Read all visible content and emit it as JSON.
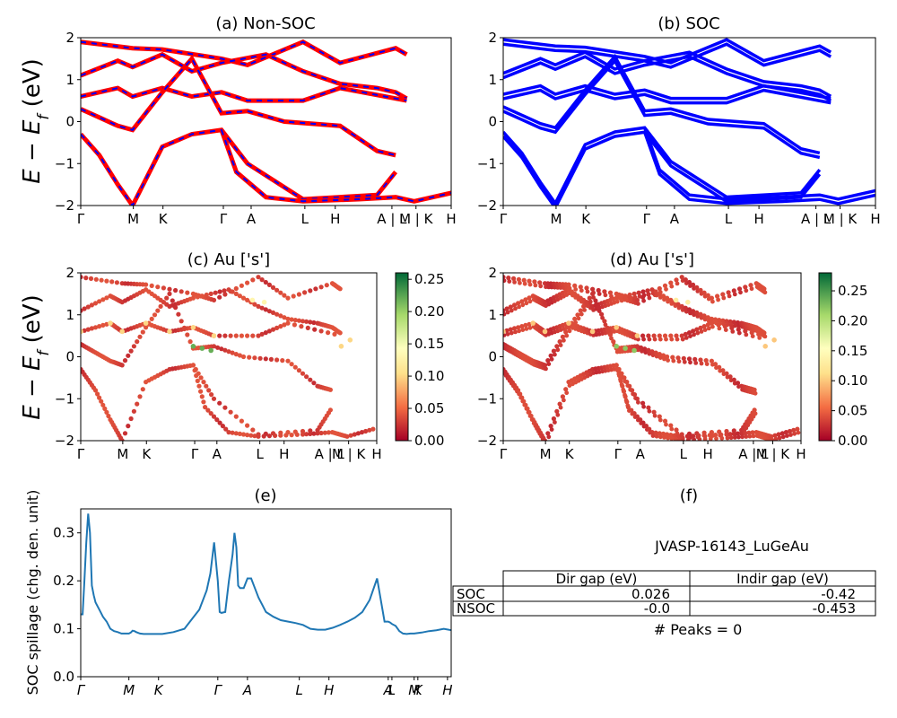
{
  "ylabel_main": "E − E",
  "ylabel_sub": "f",
  "ylabel_unit": " (eV)",
  "chart_data": [
    {
      "id": "a",
      "type": "line",
      "title": "(a) Non-SOC",
      "ylim": [
        -2,
        2
      ],
      "yticks": [
        "2",
        "1",
        "0",
        "−1",
        "−2"
      ],
      "xticks": [
        "Γ",
        "M",
        "K",
        "Γ",
        "A",
        "L",
        "H",
        "A | L",
        "M | K",
        "H"
      ],
      "colors": [
        "#ff0000",
        "#0000ff"
      ],
      "series": [
        {
          "x": [
            0,
            0.14,
            0.22,
            0.38,
            0.45,
            0.6,
            0.7,
            0.85,
            0.88
          ],
          "y": [
            1.9,
            1.75,
            1.72,
            1.5,
            1.35,
            1.9,
            1.4,
            1.75,
            1.6
          ]
        },
        {
          "x": [
            0,
            0.1,
            0.14,
            0.22,
            0.3,
            0.38,
            0.5,
            0.6,
            0.7,
            0.8,
            0.85,
            0.88
          ],
          "y": [
            1.1,
            1.45,
            1.3,
            1.6,
            1.2,
            1.4,
            1.6,
            1.2,
            0.9,
            0.8,
            0.7,
            0.55
          ]
        },
        {
          "x": [
            0,
            0.1,
            0.14,
            0.22,
            0.3,
            0.38,
            0.45,
            0.6,
            0.7,
            0.88
          ],
          "y": [
            0.6,
            0.8,
            0.6,
            0.8,
            0.6,
            0.7,
            0.5,
            0.5,
            0.8,
            0.5
          ]
        },
        {
          "x": [
            0,
            0.05,
            0.1,
            0.14,
            0.22,
            0.3,
            0.38,
            0.45,
            0.55,
            0.7,
            0.8,
            0.85
          ],
          "y": [
            0.3,
            0.1,
            -0.1,
            -0.2,
            0.7,
            1.5,
            0.2,
            0.25,
            0.0,
            -0.1,
            -0.7,
            -0.8
          ]
        },
        {
          "x": [
            0,
            0.05,
            0.1,
            0.14,
            0.22,
            0.3,
            0.38,
            0.45,
            0.6,
            0.8,
            0.85
          ],
          "y": [
            -0.3,
            -0.8,
            -1.5,
            -2.0,
            -0.6,
            -0.3,
            -0.2,
            -1.0,
            -1.85,
            -1.75,
            -1.2
          ]
        },
        {
          "x": [
            0.38,
            0.42,
            0.5,
            0.6,
            0.75,
            0.85,
            0.9,
            1.0
          ],
          "y": [
            -0.2,
            -1.2,
            -1.8,
            -1.9,
            -1.85,
            -1.8,
            -1.9,
            -1.7
          ]
        }
      ]
    },
    {
      "id": "b",
      "type": "line",
      "title": "(b) SOC",
      "ylim": [
        -2,
        2
      ],
      "yticks": [
        "2",
        "1",
        "0",
        "−1",
        "−2"
      ],
      "xticks": [
        "Γ",
        "M",
        "K",
        "Γ",
        "A",
        "L",
        "H",
        "A | L",
        "M | K",
        "H"
      ],
      "colors": [
        "#0000ff"
      ],
      "series": [
        {
          "x": [
            0,
            0.14,
            0.22,
            0.38,
            0.45,
            0.6,
            0.7,
            0.85,
            0.88
          ],
          "y": [
            1.9,
            1.75,
            1.72,
            1.5,
            1.35,
            1.9,
            1.4,
            1.75,
            1.6
          ]
        },
        {
          "x": [
            0,
            0.1,
            0.14,
            0.22,
            0.3,
            0.38,
            0.5,
            0.6,
            0.7,
            0.8,
            0.85,
            0.88
          ],
          "y": [
            1.1,
            1.45,
            1.3,
            1.6,
            1.2,
            1.4,
            1.6,
            1.2,
            0.9,
            0.8,
            0.7,
            0.55
          ]
        },
        {
          "x": [
            0,
            0.1,
            0.14,
            0.22,
            0.3,
            0.38,
            0.45,
            0.6,
            0.7,
            0.88
          ],
          "y": [
            0.6,
            0.8,
            0.6,
            0.8,
            0.6,
            0.7,
            0.5,
            0.5,
            0.8,
            0.5
          ]
        },
        {
          "x": [
            0,
            0.05,
            0.1,
            0.14,
            0.22,
            0.3,
            0.38,
            0.45,
            0.55,
            0.7,
            0.8,
            0.85
          ],
          "y": [
            0.3,
            0.1,
            -0.1,
            -0.2,
            0.7,
            1.5,
            0.2,
            0.25,
            0.0,
            -0.1,
            -0.7,
            -0.8
          ]
        },
        {
          "x": [
            0,
            0.05,
            0.1,
            0.14,
            0.22,
            0.3,
            0.38,
            0.45,
            0.6,
            0.8,
            0.85
          ],
          "y": [
            -0.3,
            -0.8,
            -1.5,
            -2.0,
            -0.6,
            -0.3,
            -0.2,
            -1.0,
            -1.85,
            -1.75,
            -1.2
          ]
        },
        {
          "x": [
            0.38,
            0.42,
            0.5,
            0.6,
            0.75,
            0.85,
            0.9,
            1.0
          ],
          "y": [
            -0.2,
            -1.2,
            -1.8,
            -1.9,
            -1.85,
            -1.8,
            -1.9,
            -1.7
          ]
        }
      ]
    },
    {
      "id": "c",
      "type": "scatter",
      "title": "(c)  Au ['s']",
      "ylim": [
        -2,
        2
      ],
      "yticks": [
        "2",
        "1",
        "0",
        "−1",
        "−2"
      ],
      "xticks": [
        "Γ",
        "M",
        "K",
        "Γ",
        "A",
        "L",
        "H",
        "A | L",
        "M | K",
        "H"
      ],
      "colorbar": {
        "ticks": [
          "0.25",
          "0.20",
          "0.15",
          "0.10",
          "0.05",
          "0.00"
        ],
        "vmax": 0.26
      },
      "points_weight": [
        {
          "x": [
            0,
            0.1,
            0.14,
            0.22,
            0.3,
            0.38,
            0.45
          ],
          "y": [
            0.6,
            0.8,
            0.6,
            0.8,
            0.6,
            0.7,
            0.5
          ],
          "w": 0.1
        },
        {
          "x": [
            0.38,
            0.41,
            0.44
          ],
          "y": [
            0.25,
            0.2,
            0.15
          ],
          "w": 0.22
        },
        {
          "x": [
            0.58,
            0.62
          ],
          "y": [
            1.35,
            1.3
          ],
          "w": 0.13
        },
        {
          "x": [
            0.88,
            0.91
          ],
          "y": [
            0.25,
            0.4
          ],
          "w": 0.1
        }
      ]
    },
    {
      "id": "d",
      "type": "scatter",
      "title": "(d) Au ['s']",
      "ylim": [
        -2,
        2
      ],
      "yticks": [
        "2",
        "1",
        "0",
        "−1",
        "−2"
      ],
      "xticks": [
        "Γ",
        "M",
        "K",
        "Γ",
        "A",
        "L",
        "H",
        "A | L",
        "M | K",
        "H"
      ],
      "colorbar": {
        "ticks": [
          "0.25",
          "0.20",
          "0.15",
          "0.10",
          "0.05",
          "0.00"
        ],
        "vmax": 0.28
      }
    },
    {
      "id": "e",
      "type": "line",
      "title": "(e)",
      "ylabel": "SOC spillage (chg. den. unit)",
      "ylim": [
        0,
        0.35
      ],
      "yticks": [
        "0.3",
        "0.2",
        "0.1",
        "0.0"
      ],
      "xticks": [
        "Γ",
        "M",
        "K",
        "Γ",
        "A",
        "L",
        "H",
        "A",
        "L",
        "M",
        "K",
        "H"
      ],
      "color": "#1f77b4",
      "x": [
        0,
        0.005,
        0.01,
        0.015,
        0.02,
        0.025,
        0.03,
        0.035,
        0.04,
        0.05,
        0.06,
        0.07,
        0.08,
        0.09,
        0.1,
        0.11,
        0.12,
        0.13,
        0.135,
        0.14,
        0.145,
        0.15,
        0.16,
        0.17,
        0.18,
        0.2,
        0.22,
        0.25,
        0.28,
        0.3,
        0.32,
        0.34,
        0.35,
        0.36,
        0.37,
        0.375,
        0.38,
        0.385,
        0.39,
        0.4,
        0.41,
        0.415,
        0.42,
        0.425,
        0.43,
        0.44,
        0.45,
        0.46,
        0.47,
        0.48,
        0.49,
        0.5,
        0.52,
        0.54,
        0.56,
        0.58,
        0.6,
        0.62,
        0.64,
        0.66,
        0.68,
        0.7,
        0.72,
        0.74,
        0.76,
        0.78,
        0.8,
        0.82,
        0.83,
        0.835,
        0.84,
        0.85,
        0.86,
        0.87,
        0.88,
        0.89,
        0.9,
        0.92,
        0.94,
        0.96,
        0.98,
        1.0
      ],
      "y": [
        0.13,
        0.13,
        0.2,
        0.28,
        0.34,
        0.3,
        0.19,
        0.17,
        0.155,
        0.14,
        0.125,
        0.115,
        0.1,
        0.095,
        0.093,
        0.09,
        0.09,
        0.09,
        0.092,
        0.096,
        0.095,
        0.093,
        0.09,
        0.089,
        0.089,
        0.089,
        0.089,
        0.093,
        0.1,
        0.12,
        0.14,
        0.18,
        0.215,
        0.28,
        0.2,
        0.135,
        0.133,
        0.134,
        0.135,
        0.2,
        0.255,
        0.3,
        0.27,
        0.19,
        0.185,
        0.185,
        0.205,
        0.205,
        0.185,
        0.165,
        0.15,
        0.135,
        0.125,
        0.118,
        0.115,
        0.112,
        0.108,
        0.1,
        0.098,
        0.098,
        0.102,
        0.108,
        0.115,
        0.123,
        0.135,
        0.16,
        0.205,
        0.115,
        0.115,
        0.113,
        0.11,
        0.106,
        0.095,
        0.09,
        0.089,
        0.09,
        0.09,
        0.092,
        0.095,
        0.097,
        0.1,
        0.097
      ]
    },
    {
      "id": "f",
      "type": "table",
      "title": "(f)",
      "label": "JVASP-16143_LuGeAu",
      "columns": [
        "Dir gap (eV)",
        "Indir gap (eV)"
      ],
      "rows": [
        {
          "name": "SOC",
          "values": [
            "0.026",
            "-0.42"
          ]
        },
        {
          "name": "NSOC",
          "values": [
            "-0.0",
            "-0.453"
          ]
        }
      ],
      "footer": "# Peaks = 0"
    }
  ]
}
